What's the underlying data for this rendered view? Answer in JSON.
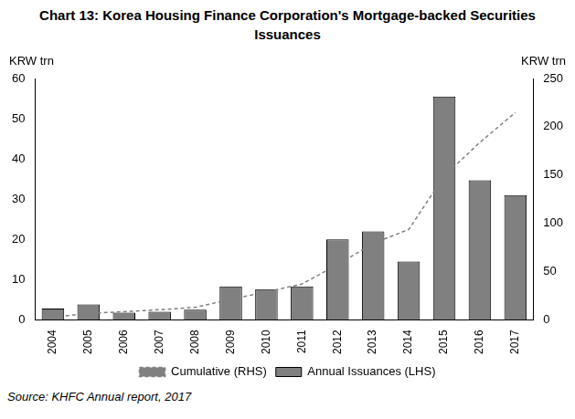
{
  "chart_data": {
    "type": "bar",
    "title": "Chart 13: Korea Housing Finance Corporation's Mortgage-backed Securities Issuances",
    "categories": [
      "2004",
      "2005",
      "2006",
      "2007",
      "2008",
      "2009",
      "2010",
      "2011",
      "2012",
      "2013",
      "2014",
      "2015",
      "2016",
      "2017"
    ],
    "series": [
      {
        "name": "Annual Issuances (LHS)",
        "type": "bar",
        "color": "#808080",
        "values": [
          2.8,
          3.8,
          1.8,
          2.0,
          2.5,
          8.3,
          7.6,
          8.3,
          20.0,
          22.0,
          14.5,
          55.5,
          34.7,
          31.0
        ]
      },
      {
        "name": "Cumulative (RHS)",
        "type": "line",
        "axis": "y2",
        "color": "#808080",
        "line_style": "dashed",
        "values": [
          2.8,
          6.6,
          8.4,
          10.4,
          12.9,
          21.2,
          28.8,
          37.1,
          57.1,
          79.1,
          93.6,
          149.1,
          183.8,
          214.8
        ]
      }
    ],
    "y_label": "KRW trn",
    "y2_label": "KRW trn",
    "ylim": [
      0,
      60
    ],
    "yticks": [
      0,
      10,
      20,
      30,
      40,
      50,
      60
    ],
    "y2lim": [
      0,
      250
    ],
    "y2ticks": [
      0,
      50,
      100,
      150,
      200,
      250
    ],
    "grid": false,
    "legend": "bottom",
    "source": "Source: KHFC Annual report, 2017"
  }
}
